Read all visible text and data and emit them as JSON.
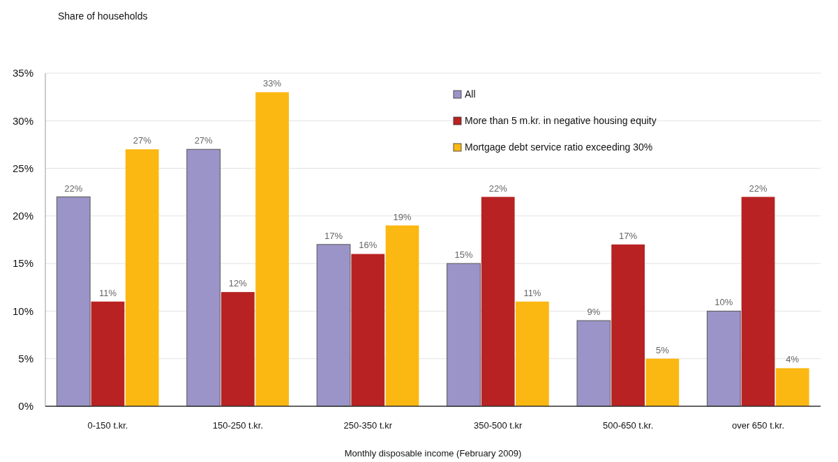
{
  "chart_data": {
    "type": "bar",
    "ylabel": "Share of households",
    "xlabel": "Monthly disposable income (February 2009)",
    "categories": [
      "0-150 t.kr.",
      "150-250 t.kr.",
      "250-350 t.kr",
      "350-500 t.kr",
      "500-650 t.kr.",
      "over 650 t.kr."
    ],
    "series": [
      {
        "name": "All",
        "color": "#9b94c8",
        "values": [
          22,
          27,
          17,
          15,
          9,
          10
        ],
        "value_labels": [
          "22%",
          "27%",
          "17%",
          "15%",
          "9%",
          "10%"
        ]
      },
      {
        "name": "More than 5 m.kr. in negative housing equity",
        "color": "#b82222",
        "values": [
          11,
          12,
          16,
          22,
          17,
          22
        ],
        "value_labels": [
          "11%",
          "12%",
          "16%",
          "22%",
          "17%",
          "22%"
        ]
      },
      {
        "name": "Mortgage debt service ratio exceeding 30%",
        "color": "#fbb812",
        "values": [
          27,
          33,
          19,
          11,
          5,
          4
        ],
        "value_labels": [
          "27%",
          "33%",
          "19%",
          "11%",
          "5%",
          "4%"
        ]
      }
    ],
    "ylim": [
      0,
      35
    ],
    "yticks": [
      {
        "value": 0,
        "label": "0%"
      },
      {
        "value": 5,
        "label": "5%"
      },
      {
        "value": 10,
        "label": "10%"
      },
      {
        "value": 15,
        "label": "15%"
      },
      {
        "value": 20,
        "label": "20%"
      },
      {
        "value": 25,
        "label": "25%"
      },
      {
        "value": 30,
        "label": "30%"
      },
      {
        "value": 35,
        "label": "35%"
      }
    ],
    "grid": "y",
    "legend": "top right"
  }
}
